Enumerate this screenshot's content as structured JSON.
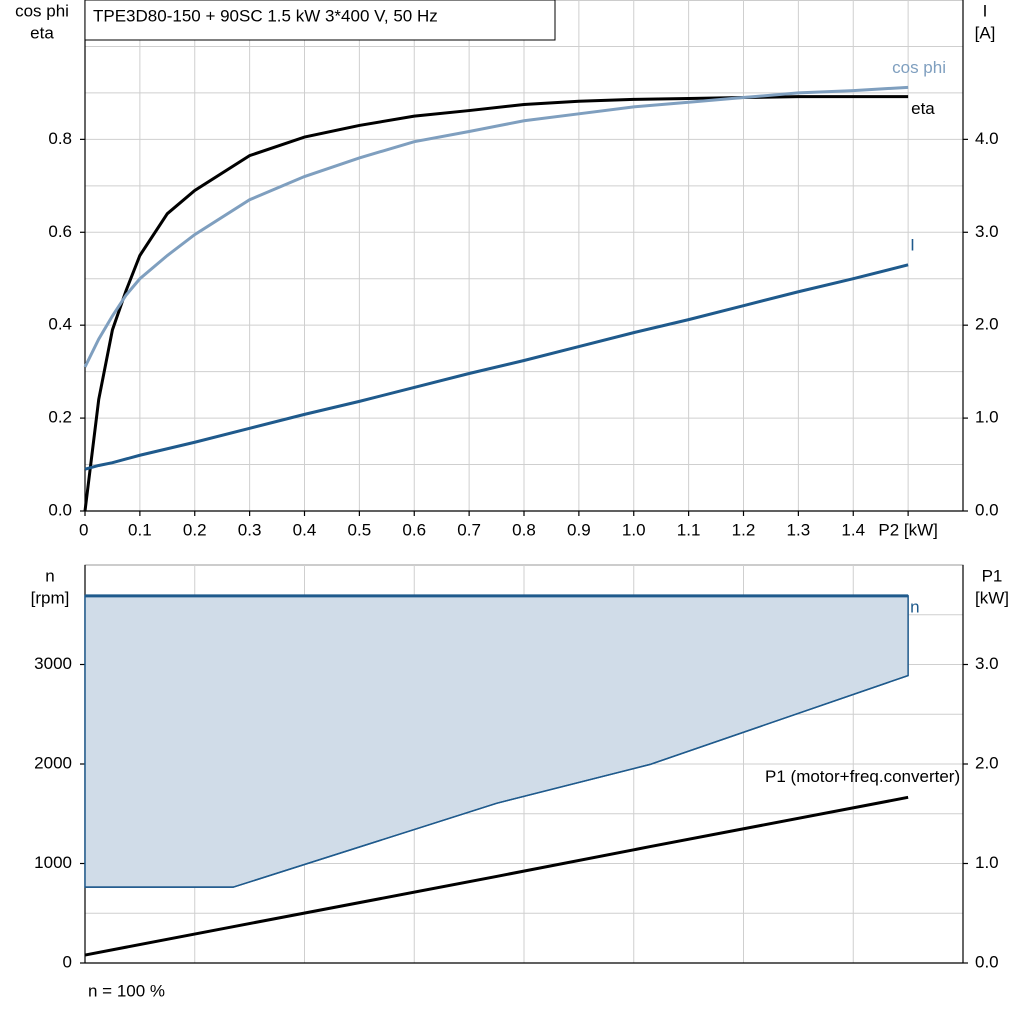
{
  "chart_data": [
    {
      "type": "line",
      "title": "TPE3D80-150 + 90SC   1.5 kW   3*400 V, 50 Hz",
      "y_label": [
        "cos phi",
        "eta"
      ],
      "y2_label": [
        "I",
        "[A]"
      ],
      "x": [
        0,
        0.025,
        0.05,
        0.075,
        0.1,
        0.15,
        0.2,
        0.3,
        0.4,
        0.5,
        0.6,
        0.7,
        0.8,
        0.9,
        1.0,
        1.1,
        1.2,
        1.3,
        1.4,
        1.5
      ],
      "xlim": [
        0,
        1.6
      ],
      "xticks": [
        0,
        0.1,
        0.2,
        0.3,
        0.4,
        0.5,
        0.6,
        0.7,
        0.8,
        0.9,
        {
          "value": 1,
          "label": "1.0"
        },
        1.1,
        1.2,
        1.3,
        1.4,
        {
          "value": 1.5,
          "label": "P2 [kW]"
        }
      ],
      "ylim": [
        0,
        1.1
      ],
      "yticks": [
        {
          "value": 0,
          "label": "0.0"
        },
        0.2,
        0.4,
        0.6,
        0.8
      ],
      "ygrid_minor": [
        0.1,
        0.3,
        0.5,
        0.7,
        0.9,
        1.0
      ],
      "y2lim": [
        0,
        5.5
      ],
      "y2ticks": [
        {
          "value": 0,
          "label": "0.0"
        },
        {
          "value": 1,
          "label": "1.0"
        },
        {
          "value": 2,
          "label": "2.0"
        },
        {
          "value": 3,
          "label": "3.0"
        },
        {
          "value": 4,
          "label": "4.0"
        }
      ],
      "grid": true,
      "series": [
        {
          "name": "eta",
          "color": "#000000",
          "values": [
            0,
            0.24,
            0.39,
            0.475,
            0.55,
            0.64,
            0.69,
            0.765,
            0.805,
            0.83,
            0.85,
            0.862,
            0.875,
            0.882,
            0.886,
            0.888,
            0.89,
            0.892,
            0.892,
            0.892
          ]
        },
        {
          "name": "cos phi",
          "color": "#7f9fbf",
          "values": [
            0.31,
            0.37,
            0.42,
            0.465,
            0.5,
            0.55,
            0.595,
            0.67,
            0.72,
            0.76,
            0.795,
            0.817,
            0.84,
            0.855,
            0.87,
            0.88,
            0.89,
            0.9,
            0.905,
            0.912
          ]
        },
        {
          "name": "I",
          "color": "#1f5a8c",
          "axis": "y2",
          "values": [
            0.45,
            0.49,
            0.52,
            0.56,
            0.6,
            0.67,
            0.74,
            0.89,
            1.04,
            1.18,
            1.33,
            1.48,
            1.62,
            1.77,
            1.92,
            2.06,
            2.21,
            2.36,
            2.5,
            2.65
          ]
        }
      ]
    },
    {
      "type": "line",
      "y_label": [
        "n",
        "[rpm]"
      ],
      "y2_label": [
        "P1",
        "[kW]"
      ],
      "note": "n = 100 %",
      "x": [
        0,
        0.27,
        0.75,
        1.03,
        1.5
      ],
      "xlim": [
        0,
        1.6
      ],
      "xgrid": [
        0.2,
        0.4,
        0.6,
        0.8,
        1.0,
        1.2,
        1.4
      ],
      "ylim": [
        0,
        4000
      ],
      "yticks": [
        0,
        1000,
        2000,
        3000
      ],
      "ygrid_minor": [
        500,
        1500,
        2500,
        3500
      ],
      "y2lim": [
        0,
        4.0
      ],
      "y2ticks": [
        {
          "value": 0,
          "label": "0.0"
        },
        {
          "value": 1,
          "label": "1.0"
        },
        {
          "value": 2,
          "label": "2.0"
        },
        {
          "value": 3,
          "label": "3.0"
        }
      ],
      "grid": true,
      "series": [
        {
          "name": "n",
          "color": "#1f5a8c",
          "fill": "#d0dce8",
          "values": [
            3690,
            3690,
            3690,
            3690,
            3690
          ],
          "lower": [
            762,
            762,
            1605,
            1996,
            2889
          ]
        },
        {
          "name": "P1 (motor+freq.converter)",
          "color": "#000000",
          "axis": "y2",
          "values": [
            0.08,
            0.365,
            0.87,
            1.17,
            1.665
          ]
        }
      ]
    }
  ]
}
